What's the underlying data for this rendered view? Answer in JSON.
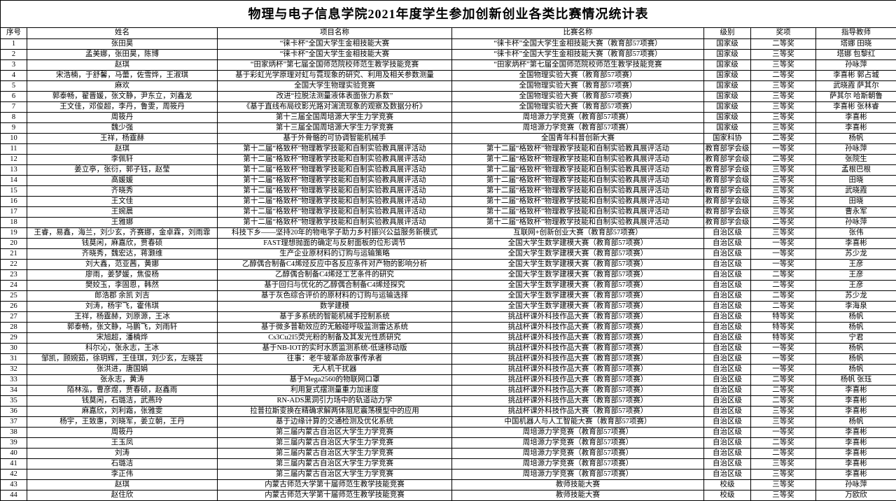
{
  "title": "物理与电子信息学院2021年度学生参加创新创业各类比赛情况统计表",
  "columns": [
    {
      "key": "no",
      "label": "序号"
    },
    {
      "key": "names",
      "label": "姓名"
    },
    {
      "key": "project",
      "label": "项目名称"
    },
    {
      "key": "competition",
      "label": "比赛名称"
    },
    {
      "key": "level",
      "label": "级别"
    },
    {
      "key": "award",
      "label": "奖项"
    },
    {
      "key": "advisor",
      "label": "指导教师"
    }
  ],
  "rows": [
    {
      "no": "1",
      "names": "张田昊",
      "project": "“徕卡杯”全国大学生金相技能大赛",
      "competition": "“徕卡杯”全国大学生金相技能大赛（教育部57项赛）",
      "level": "国家级",
      "award": "二等奖",
      "advisor": "塔娜 田晓"
    },
    {
      "no": "2",
      "names": "孟美娜，张田昊，陈博",
      "project": "“徕卡杯”全国大学生金相技能大赛",
      "competition": "“徕卡杯”全国大学生金相技能大赛（教育部57项赛）",
      "level": "国家级",
      "award": "三等奖",
      "advisor": "塔娜 包黎红"
    },
    {
      "no": "3",
      "names": "赵琪",
      "project": "“田家炳杯”第七届全国师范院校师范生教学技能竞赛",
      "competition": "“田家炳杯”第七届全国师范院校师范生教学技能竞赛",
      "level": "国家级",
      "award": "三等奖",
      "advisor": "孙咏萍"
    },
    {
      "no": "4",
      "names": "宋浩楠，于舒馨，马蕾，佐雪烨，王淑琪",
      "project": "基于彩虹光学原理对虹与霓现象的研究、利用及相关参数测量",
      "competition": "全国物理实验大赛（教育部57项赛）",
      "level": "国家级",
      "award": "二等奖",
      "advisor": "李喜彬 郭占城"
    },
    {
      "no": "5",
      "names": "麻欢",
      "project": "全国大学生物理实验竞赛",
      "competition": "全国物理实验大赛（教育部57项赛）",
      "level": "国家级",
      "award": "三等奖",
      "advisor": "武晓霞 萨其尔"
    },
    {
      "no": "6",
      "names": "郭泰畅，翟晋媛，张文静，尹东立，刘鑫龙",
      "project": "改进“拉脱法测量液体表面张力系数”",
      "competition": "全国物理实验大赛（教育部57项赛）",
      "level": "国家级",
      "award": "三等奖",
      "advisor": "萨其尔 哈斯朝鲁"
    },
    {
      "no": "7",
      "names": "王文佳，邓俊超，李丹，鲁雯，周筱丹",
      "project": "《基于直线布局纹影光路对湍流现象的观察及数据分析》",
      "competition": "全国物理实验大赛（教育部57项赛）",
      "level": "国家级",
      "award": "三等奖",
      "advisor": "李喜彬 张林睿"
    },
    {
      "no": "8",
      "names": "周筱丹",
      "project": "第十三届全国周培源大学生力学竞赛",
      "competition": "周培源力学竞赛（教育部57项赛）",
      "level": "国家级",
      "award": "三等奖",
      "advisor": "李喜彬"
    },
    {
      "no": "9",
      "names": "魏少强",
      "project": "第十三届全国周培源大学生力学竞赛",
      "competition": "周培源力学竞赛（教育部57项赛）",
      "level": "国家级",
      "award": "三等奖",
      "advisor": "李喜彬"
    },
    {
      "no": "10",
      "names": "王祥，杨霆赫",
      "project": "基于外骨骼的可协调智能机械手",
      "competition": "全国青年科普创新大赛",
      "level": "国家科协",
      "award": "二等奖",
      "advisor": "杨帆"
    },
    {
      "no": "11",
      "names": "赵琪",
      "project": "第十二届“格致杯”物理教学技能和自制实验教具展评活动",
      "competition": "第十二届“格致杯”物理教学技能和自制实验教具展评活动",
      "level": "教育部学会级",
      "award": "一等奖",
      "advisor": "孙咏萍"
    },
    {
      "no": "12",
      "names": "李佩轩",
      "project": "第十二届“格致杯”物理教学技能和自制实验教具展评活动",
      "competition": "第十二届“格致杯”物理教学技能和自制实验教具展评活动",
      "level": "教育部学会级",
      "award": "二等奖",
      "advisor": "张院生"
    },
    {
      "no": "13",
      "names": "姜立亭，张衍，郭子钰，赵莹",
      "project": "第十二届“格致杯”物理教学技能和自制实验教具展评活动",
      "competition": "第十二届“格致杯”物理教学技能和自制实验教具展评活动",
      "level": "教育部学会级",
      "award": "三等奖",
      "advisor": "孟根巴根"
    },
    {
      "no": "14",
      "names": "高媛媛",
      "project": "第十二届“格致杯”物理教学技能和自制实验教具展评活动",
      "competition": "第十二届“格致杯”物理教学技能和自制实验教具展评活动",
      "level": "教育部学会级",
      "award": "三等奖",
      "advisor": "田晓"
    },
    {
      "no": "15",
      "names": "齐晓秀",
      "project": "第十二届“格致杯”物理教学技能和自制实验教具展评活动",
      "competition": "第十二届“格致杯”物理教学技能和自制实验教具展评活动",
      "level": "教育部学会级",
      "award": "三等奖",
      "advisor": "武晓霞"
    },
    {
      "no": "16",
      "names": "王文佳",
      "project": "第十二届“格致杯”物理教学技能和自制实验教具展评活动",
      "competition": "第十二届“格致杯”物理教学技能和自制实验教具展评活动",
      "level": "教育部学会级",
      "award": "三等奖",
      "advisor": "田晓"
    },
    {
      "no": "17",
      "names": "王婉晨",
      "project": "第十二届“格致杯”物理教学技能和自制实验教具展评活动",
      "competition": "第十二届“格致杯”物理教学技能和自制实验教具展评活动",
      "level": "教育部学会级",
      "award": "三等奖",
      "advisor": "曹永军"
    },
    {
      "no": "18",
      "names": "王雅娜",
      "project": "第十二届“格致杯”物理教学技能和自制实验教具展评活动",
      "competition": "第十二届“格致杯”物理教学技能和自制实验教具展评活动",
      "level": "教育部学会级",
      "award": "二等奖",
      "advisor": "孙咏萍"
    },
    {
      "no": "19",
      "names": "王睿，易鑫，海兰，刘少玄，齐赛娜，金卓霖，刘雨霏",
      "project": "科技下乡——坚持20年的物电学子助力乡村振兴公益服务新模式",
      "competition": "互联网+创新创业大赛（教育部57项赛）",
      "level": "自治区级",
      "award": "三等奖",
      "advisor": "张伟"
    },
    {
      "no": "20",
      "names": "钱莫闲，麻嘉欣，贾春硕",
      "project": "FAST理想抛面的确定与反射面板的位形调节",
      "competition": "全国大学生数学建模大赛（教育部57项赛）",
      "level": "自治区级",
      "award": "一等奖",
      "advisor": "李喜彬"
    },
    {
      "no": "21",
      "names": "齐晓秀，魏宏达，蒋灏维",
      "project": "生产企业原材料的订购与运输策略",
      "competition": "全国大学生数学建模大赛（教育部57项赛）",
      "level": "自治区级",
      "award": "一等奖",
      "advisor": "苏少龙"
    },
    {
      "no": "22",
      "names": "刘大鑫，范亚茜，黄娜",
      "project": "乙醇偶合制备C4烯烃反应中各反应条件对产物的影响分析",
      "competition": "全国大学生数学建模大赛（教育部57项赛）",
      "level": "自治区级",
      "award": "一等奖",
      "advisor": "王彦"
    },
    {
      "no": "23",
      "names": "廖雨，姜梦媛，焦俊杨",
      "project": "乙醇偶合制备C4烯烃工艺条件的研究",
      "competition": "全国大学生数学建模大赛（教育部57项赛）",
      "level": "自治区级",
      "award": "二等奖",
      "advisor": "王彦"
    },
    {
      "no": "24",
      "names": "樊姣玉，李固恩，韩然",
      "project": "基于回归与优化的乙醇偶合制备C4烯烃探究",
      "competition": "全国大学生数学建模大赛（教育部57项赛）",
      "level": "自治区级",
      "award": "二等奖",
      "advisor": "王彦"
    },
    {
      "no": "25",
      "names": "郎浩郡 余凯 刘吉",
      "project": "基于灰色综合评价的原材料的订购与运输选择",
      "competition": "全国大学生数学建模大赛（教育部57项赛）",
      "level": "自治区级",
      "award": "二等奖",
      "advisor": "苏少龙"
    },
    {
      "no": "26",
      "names": "刘涛，杨宇飞，霍伟琪",
      "project": "数学建模",
      "competition": "全国大学生数学建模大赛（教育部57项赛）",
      "level": "自治区级",
      "award": "二等奖",
      "advisor": "李海泉"
    },
    {
      "no": "27",
      "names": "王祥，杨霆赫，刘原源，王冰",
      "project": "基于多系统的智能机械手控制系统",
      "competition": "挑战杯课外科技作品大赛（教育部57项赛）",
      "level": "自治区级",
      "award": "特等奖",
      "advisor": "杨帆"
    },
    {
      "no": "28",
      "names": "郭泰畅，张文静，马鹏飞，刘雨轩",
      "project": "基于微多普勒效应的无触碰呼吸监测雷达系统",
      "competition": "挑战杯课外科技作品大赛（教育部57项赛）",
      "level": "自治区级",
      "award": "特等奖",
      "advisor": "杨帆"
    },
    {
      "no": "29",
      "names": "宋旭超，潘楠烨",
      "project": "Cs3Cu2I5荧光粉的制备及其发光性质研究",
      "competition": "挑战杯课外科技作品大赛（教育部57项赛）",
      "level": "自治区级",
      "award": "特等奖",
      "advisor": "宁君"
    },
    {
      "no": "30",
      "names": "科尔沁，张永志，王冰",
      "project": "基于NB-IOT的实时水质监测系统-低速移动版",
      "competition": "挑战杯课外科技作品大赛（教育部57项赛）",
      "level": "自治区级",
      "award": "一等奖",
      "advisor": "杨帆"
    },
    {
      "no": "31",
      "names": "邹凯，顾婉茹，徐玥辉，王佳琪，刘少玄，左晓芸",
      "project": "往事：老牛坡革命故事传承者",
      "competition": "挑战杯课外科技作品大赛（教育部57项赛）",
      "level": "自治区级",
      "award": "一等奖",
      "advisor": "杨帆"
    },
    {
      "no": "32",
      "names": "张洪进，唐国娟",
      "project": "无人机干扰器",
      "competition": "挑战杯课外科技作品大赛（教育部57项赛）",
      "level": "自治区级",
      "award": "一等奖",
      "advisor": "杨帆"
    },
    {
      "no": "33",
      "names": "张永志，黄涛",
      "project": "基于Mega2560的物联网口罩",
      "competition": "挑战杯课外科技作品大赛（教育部57项赛）",
      "level": "自治区级",
      "award": "二等奖",
      "advisor": "杨帆 张珏"
    },
    {
      "no": "34",
      "names": "陌林泓，曹彦煜，贾春硕，赵鑫雨",
      "project": "利用复式摆测量重力加速度",
      "competition": "挑战杯课外科技作品大赛（教育部57项赛）",
      "level": "自治区级",
      "award": "二等奖",
      "advisor": "李喜彬"
    },
    {
      "no": "35",
      "names": "钱莫闲，石璐洁，武燕玲",
      "project": "RN-ADS黑洞引力场中的轨道动力学",
      "competition": "挑战杯课外科技作品大赛（教育部57项赛）",
      "level": "自治区级",
      "award": "二等奖",
      "advisor": "李喜彬"
    },
    {
      "no": "36",
      "names": "麻嘉欣，刘利霜，张雅雯",
      "project": "拉普拉斯变换在精确求解两体阻尼震荡模型中的应用",
      "competition": "挑战杯课外科技作品大赛（教育部57项赛）",
      "level": "自治区级",
      "award": "三等奖",
      "advisor": "李喜彬"
    },
    {
      "no": "37",
      "names": "杨宇，王致惠，刘晓军，姜立朝，王丹",
      "project": "基于边缘计算的交通检测及优化系统",
      "competition": "中国机器人与人工智能大赛（教育部57项赛）",
      "level": "自治区级",
      "award": "三等奖",
      "advisor": "杨帆"
    },
    {
      "no": "38",
      "names": "周筱丹",
      "project": "第三届内蒙古自治区大学生力学竞赛",
      "competition": "周培源力学竞赛（教育部57项赛）",
      "level": "自治区级",
      "award": "一等奖",
      "advisor": "李喜彬"
    },
    {
      "no": "39",
      "names": "王玉凤",
      "project": "第三届内蒙古自治区大学生力学竞赛",
      "competition": "周培源力学竞赛（教育部57项赛）",
      "level": "自治区级",
      "award": "二等奖",
      "advisor": "李喜彬"
    },
    {
      "no": "40",
      "names": "刘涛",
      "project": "第三届内蒙古自治区大学生力学竞赛",
      "competition": "周培源力学竞赛（教育部57项赛）",
      "level": "自治区级",
      "award": "二等奖",
      "advisor": "李喜彬"
    },
    {
      "no": "41",
      "names": "石璐洁",
      "project": "第三届内蒙古自治区大学生力学竞赛",
      "competition": "周培源力学竞赛（教育部57项赛）",
      "level": "自治区级",
      "award": "三等奖",
      "advisor": "李喜彬"
    },
    {
      "no": "42",
      "names": "李正伟",
      "project": "第三届内蒙古自治区大学生力学竞赛",
      "competition": "周培源力学竞赛（教育部57项赛）",
      "level": "自治区级",
      "award": "三等奖",
      "advisor": "李喜彬"
    },
    {
      "no": "43",
      "names": "赵琪",
      "project": "内蒙古师范大学第十届师范生教学技能竞赛",
      "competition": "教师技能大赛",
      "level": "校级",
      "award": "三等奖",
      "advisor": "孙咏萍"
    },
    {
      "no": "44",
      "names": "赵住欣",
      "project": "内蒙古师范大学第十届师范生教学技能竞赛",
      "competition": "教师技能大赛",
      "level": "校级",
      "award": "三等奖",
      "advisor": "万欧欣"
    }
  ]
}
